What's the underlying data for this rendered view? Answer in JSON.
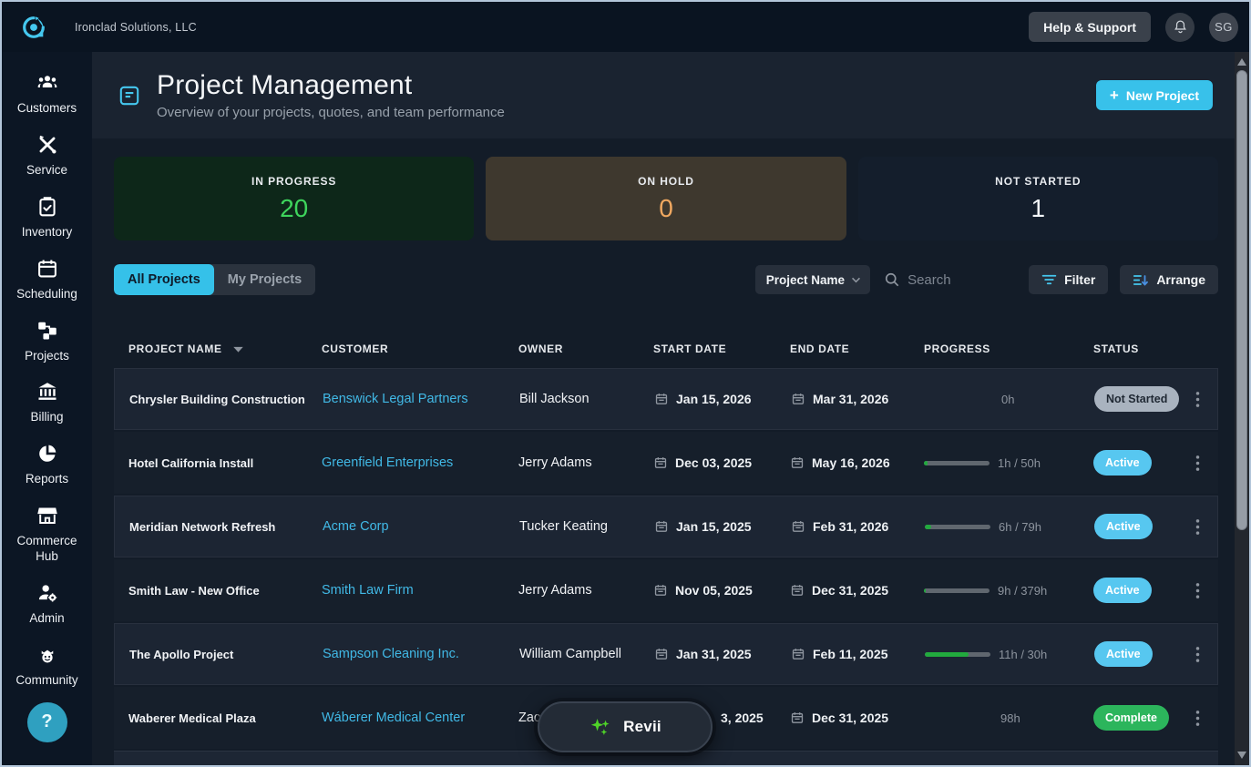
{
  "topbar": {
    "company": "Ironclad Solutions, LLC",
    "help_button": "Help & Support",
    "avatar_initials": "SG"
  },
  "sidebar": {
    "items": [
      {
        "label": "Customers",
        "icon": "customers-icon"
      },
      {
        "label": "Service",
        "icon": "service-icon"
      },
      {
        "label": "Inventory",
        "icon": "inventory-icon"
      },
      {
        "label": "Scheduling",
        "icon": "scheduling-icon"
      },
      {
        "label": "Projects",
        "icon": "projects-icon"
      },
      {
        "label": "Billing",
        "icon": "billing-icon"
      },
      {
        "label": "Reports",
        "icon": "reports-icon"
      },
      {
        "label": "Commerce Hub",
        "icon": "commerce-hub-icon"
      },
      {
        "label": "Admin",
        "icon": "admin-icon"
      },
      {
        "label": "Community",
        "icon": "community-icon"
      }
    ],
    "help_button": "?"
  },
  "header": {
    "title": "Project Management",
    "subtitle": "Overview of your projects, quotes, and team performance",
    "new_project": "New Project",
    "plus_glyph": "+"
  },
  "stats": [
    {
      "label": "IN PROGRESS",
      "value": "20",
      "bg": "#0d2719",
      "value_color": "#3ed45c"
    },
    {
      "label": "ON HOLD",
      "value": "0",
      "bg": "#3e382e",
      "value_color": "#f0a860"
    },
    {
      "label": "NOT STARTED",
      "value": "1",
      "bg": "#141e2c",
      "value_color": "#f2f5f8"
    }
  ],
  "tabs": [
    {
      "label": "All Projects",
      "active": true
    },
    {
      "label": "My Projects",
      "active": false
    }
  ],
  "toolbar": {
    "sort_selector": "Project Name",
    "search_placeholder": "Search",
    "filter": "Filter",
    "arrange": "Arrange"
  },
  "table": {
    "columns": [
      "PROJECT NAME",
      "CUSTOMER",
      "OWNER",
      "START DATE",
      "END DATE",
      "PROGRESS",
      "STATUS"
    ],
    "sorted_column": "PROJECT NAME",
    "rows": [
      {
        "name": "Chrysler Building Construction",
        "customer": "Benswick Legal Partners",
        "owner": "Bill Jackson",
        "start_date": "Jan 15, 2026",
        "end_date": "Mar 31, 2026",
        "hours": "0h",
        "progress_pct": null,
        "status": "Not Started"
      },
      {
        "name": "Hotel California Install",
        "customer": "Greenfield Enterprises",
        "owner": "Jerry Adams",
        "start_date": "Dec 03, 2025",
        "end_date": "May 16, 2026",
        "hours": "1h / 50h",
        "progress_pct": 5,
        "status": "Active"
      },
      {
        "name": "Meridian Network Refresh",
        "customer": "Acme Corp",
        "owner": "Tucker Keating",
        "start_date": "Jan 15, 2025",
        "end_date": "Feb 31, 2026",
        "hours": "6h / 79h",
        "progress_pct": 10,
        "status": "Active"
      },
      {
        "name": "Smith Law - New Office",
        "customer": "Smith Law Firm",
        "owner": "Jerry Adams",
        "start_date": "Nov 05, 2025",
        "end_date": "Dec 31, 2025",
        "hours": "9h / 379h",
        "progress_pct": 3,
        "status": "Active"
      },
      {
        "name": "The Apollo Project",
        "customer": "Sampson Cleaning Inc.",
        "owner": "William Campbell",
        "start_date": "Jan 31, 2025",
        "end_date": "Feb 11, 2025",
        "hours": "11h / 30h",
        "progress_pct": 67,
        "status": "Active"
      },
      {
        "name": "Waberer Medical Plaza",
        "customer": "Wáberer Medical Center",
        "owner": "Zac",
        "start_date": "3, 2025",
        "end_date": "Dec 31, 2025",
        "hours": "98h",
        "progress_pct": null,
        "status": "Complete",
        "start_icon_hidden": true,
        "obscured_by_overlay": true
      }
    ]
  },
  "status_styles": {
    "Not Started": {
      "bg": "#a9b3bf",
      "color": "#1f2833"
    },
    "Active": {
      "bg": "#57c7f0",
      "color": "#ffffff"
    },
    "Complete": {
      "bg": "#2cb55c",
      "color": "#ffffff"
    }
  },
  "revii": {
    "label": "Revii"
  },
  "colors": {
    "accent_cyan": "#38c1ea",
    "link": "#41b9e6",
    "progress_fill": "#22aa3e",
    "sparkle_green": "#4fd428"
  }
}
